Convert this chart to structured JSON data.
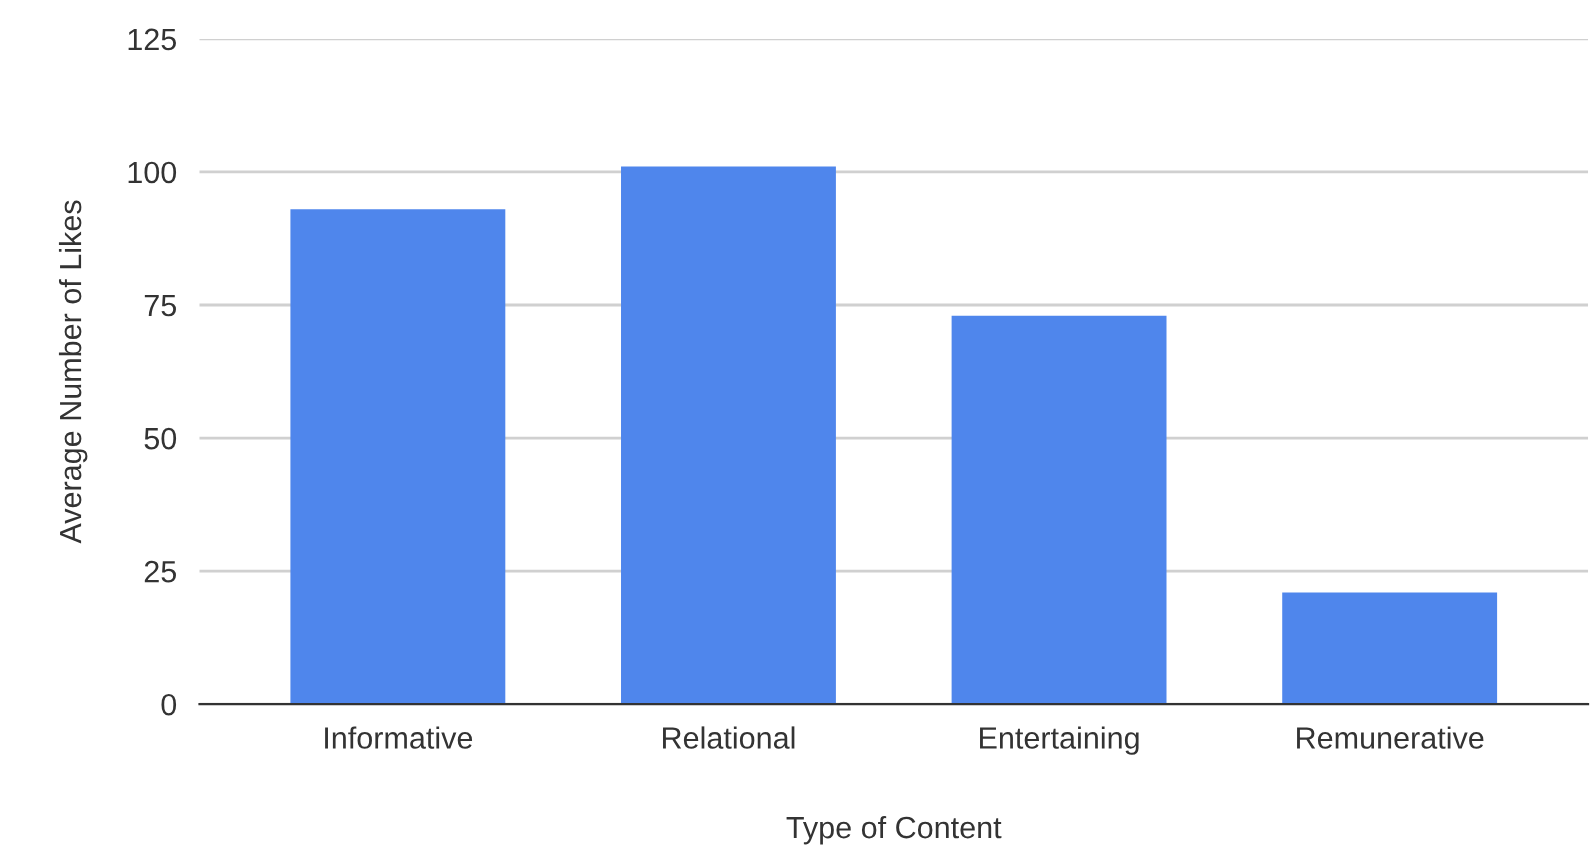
{
  "chart_data": {
    "type": "bar",
    "xlabel": "Type of Content",
    "ylabel": "Average Number of Likes",
    "categories": [
      "Informative",
      "Relational",
      "Entertaining",
      "Remunerative"
    ],
    "values": [
      93,
      101,
      73,
      21
    ],
    "color": "#4f86ec",
    "ylim": [
      0,
      125
    ],
    "yticks": [
      0,
      25,
      50,
      75,
      100,
      125
    ],
    "grid": "y"
  }
}
